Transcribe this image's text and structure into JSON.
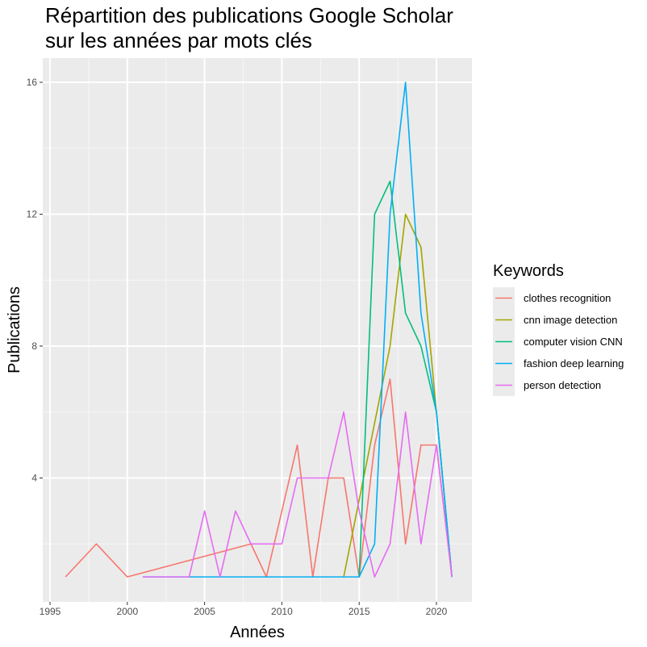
{
  "chart_data": {
    "type": "line",
    "title_lines": [
      "Répartition des publications Google Scholar",
      "sur les années par mots clés"
    ],
    "xlabel": "Années",
    "ylabel": "Publications",
    "xlim": [
      1995,
      2022
    ],
    "ylim": [
      0,
      17
    ],
    "x_ticks": [
      1995,
      2000,
      2005,
      2010,
      2015,
      2020
    ],
    "y_ticks": [
      4,
      8,
      12,
      16
    ],
    "grid": true,
    "legend": {
      "title": "Keywords",
      "position": "right"
    },
    "series": [
      {
        "name": "clothes recognition",
        "color": "#F8766D",
        "points": [
          [
            1996,
            1
          ],
          [
            1998,
            2
          ],
          [
            2000,
            1
          ],
          [
            2008,
            2
          ],
          [
            2009,
            1
          ],
          [
            2011,
            5
          ],
          [
            2012,
            1
          ],
          [
            2013,
            4
          ],
          [
            2014,
            4
          ],
          [
            2015,
            1
          ],
          [
            2016,
            5
          ],
          [
            2017,
            7
          ],
          [
            2018,
            2
          ],
          [
            2019,
            5
          ],
          [
            2020,
            5
          ],
          [
            2021,
            1
          ]
        ]
      },
      {
        "name": "cnn image detection",
        "color": "#A3A500",
        "points": [
          [
            2014,
            1
          ],
          [
            2017,
            8
          ],
          [
            2018,
            12
          ],
          [
            2019,
            11
          ],
          [
            2020,
            6
          ],
          [
            2021,
            1
          ]
        ]
      },
      {
        "name": "computer vision CNN",
        "color": "#00BF7D",
        "points": [
          [
            2015,
            1
          ],
          [
            2016,
            12
          ],
          [
            2017,
            13
          ],
          [
            2018,
            9
          ],
          [
            2019,
            8
          ],
          [
            2020,
            6
          ],
          [
            2021,
            1
          ]
        ]
      },
      {
        "name": "fashion deep learning",
        "color": "#00B0F6",
        "points": [
          [
            2001,
            1
          ],
          [
            2015,
            1
          ],
          [
            2016,
            2
          ],
          [
            2017,
            12
          ],
          [
            2018,
            16
          ],
          [
            2019,
            9
          ],
          [
            2020,
            6
          ],
          [
            2021,
            1
          ]
        ]
      },
      {
        "name": "person detection",
        "color": "#E76BF3",
        "points": [
          [
            2001,
            1
          ],
          [
            2004,
            1
          ],
          [
            2005,
            3
          ],
          [
            2006,
            1
          ],
          [
            2007,
            3
          ],
          [
            2008,
            2
          ],
          [
            2010,
            2
          ],
          [
            2011,
            4
          ],
          [
            2013,
            4
          ],
          [
            2014,
            6
          ],
          [
            2015,
            3
          ],
          [
            2016,
            1
          ],
          [
            2017,
            2
          ],
          [
            2018,
            6
          ],
          [
            2019,
            2
          ],
          [
            2020,
            5
          ],
          [
            2021,
            1
          ]
        ]
      }
    ]
  }
}
